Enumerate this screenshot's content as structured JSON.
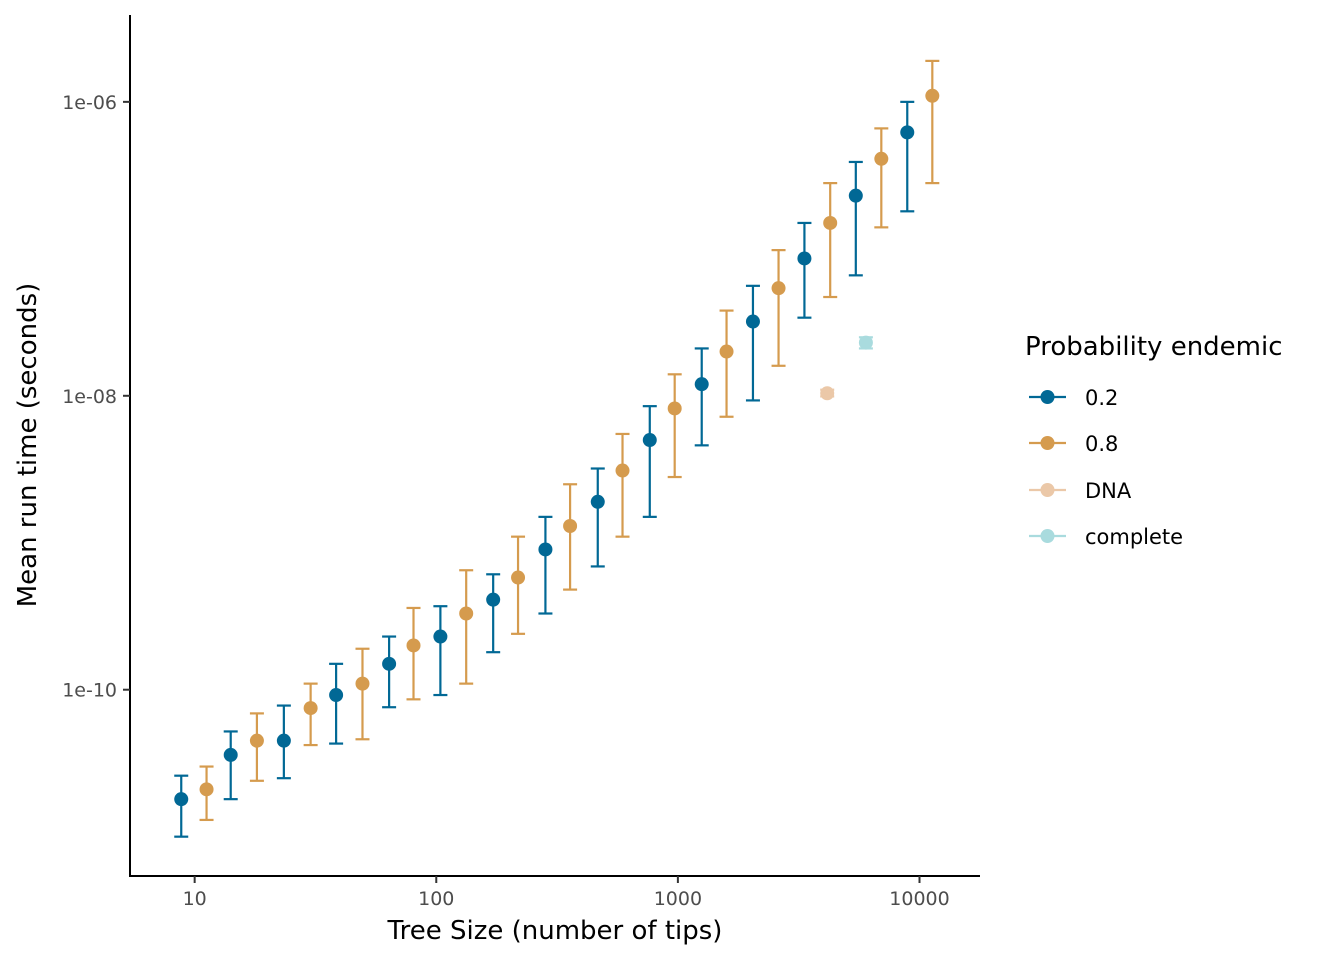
{
  "chart_data": {
    "type": "scatter",
    "xlabel": "Tree Size (number of tips)",
    "ylabel": "Mean run time (seconds)",
    "x_scale": "log10",
    "y_scale": "log10",
    "xlim": [
      5.4,
      17800
    ],
    "ylim": [
      5.4e-12,
      3.9e-06
    ],
    "x_ticks": [
      {
        "value": 10,
        "label": "10"
      },
      {
        "value": 100,
        "label": "100"
      },
      {
        "value": 1000,
        "label": "1000"
      },
      {
        "value": 10000,
        "label": "10000"
      }
    ],
    "y_ticks": [
      {
        "value": 1e-10,
        "label": "1e-10"
      },
      {
        "value": 1e-08,
        "label": "1e-8"
      },
      {
        "value": 1e-06,
        "label": "1e-06"
      }
    ],
    "y_tick_labels_display": [
      "1e-10",
      "1e-08",
      "1e-06"
    ],
    "grid": false,
    "legend": {
      "title": "Probability endemic",
      "position": "right",
      "entries": [
        "0.2",
        "0.8",
        "DNA",
        "complete"
      ]
    },
    "series": [
      {
        "name": "0.2",
        "color": "#016895",
        "points": [
          {
            "x": 8.8,
            "y": 1.8e-11,
            "lo": 1e-11,
            "hi": 2.6e-11
          },
          {
            "x": 14.1,
            "y": 3.6e-11,
            "lo": 1.8e-11,
            "hi": 5.2e-11
          },
          {
            "x": 23.4,
            "y": 4.5e-11,
            "lo": 2.5e-11,
            "hi": 7.8e-11
          },
          {
            "x": 38.5,
            "y": 9.2e-11,
            "lo": 4.3e-11,
            "hi": 1.5e-10
          },
          {
            "x": 63.8,
            "y": 1.5e-10,
            "lo": 7.6e-11,
            "hi": 2.3e-10
          },
          {
            "x": 104,
            "y": 2.3e-10,
            "lo": 9.2e-11,
            "hi": 3.7e-10
          },
          {
            "x": 172,
            "y": 4.1e-10,
            "lo": 1.8e-10,
            "hi": 6.1e-10
          },
          {
            "x": 283,
            "y": 9e-10,
            "lo": 3.3e-10,
            "hi": 1.5e-09
          },
          {
            "x": 466,
            "y": 1.9e-09,
            "lo": 6.9e-10,
            "hi": 3.2e-09
          },
          {
            "x": 765,
            "y": 5e-09,
            "lo": 1.5e-09,
            "hi": 8.5e-09
          },
          {
            "x": 1255,
            "y": 1.2e-08,
            "lo": 4.6e-09,
            "hi": 2.1e-08
          },
          {
            "x": 2045,
            "y": 3.2e-08,
            "lo": 9.3e-09,
            "hi": 5.6e-08
          },
          {
            "x": 3340,
            "y": 8.6e-08,
            "lo": 3.4e-08,
            "hi": 1.5e-07
          },
          {
            "x": 5450,
            "y": 2.3e-07,
            "lo": 6.6e-08,
            "hi": 3.9e-07
          },
          {
            "x": 8900,
            "y": 6.2e-07,
            "lo": 1.8e-07,
            "hi": 1e-06
          }
        ]
      },
      {
        "name": "0.8",
        "color": "#D59B4E",
        "points": [
          {
            "x": 11.2,
            "y": 2.1e-11,
            "lo": 1.3e-11,
            "hi": 3e-11
          },
          {
            "x": 18.1,
            "y": 4.5e-11,
            "lo": 2.4e-11,
            "hi": 6.9e-11
          },
          {
            "x": 30.2,
            "y": 7.5e-11,
            "lo": 4.2e-11,
            "hi": 1.1e-10
          },
          {
            "x": 49.5,
            "y": 1.1e-10,
            "lo": 4.6e-11,
            "hi": 1.9e-10
          },
          {
            "x": 80.5,
            "y": 2e-10,
            "lo": 8.6e-11,
            "hi": 3.6e-10
          },
          {
            "x": 133,
            "y": 3.3e-10,
            "lo": 1.1e-10,
            "hi": 6.5e-10
          },
          {
            "x": 218,
            "y": 5.8e-10,
            "lo": 2.4e-10,
            "hi": 1.1e-09
          },
          {
            "x": 358,
            "y": 1.3e-09,
            "lo": 4.8e-10,
            "hi": 2.5e-09
          },
          {
            "x": 590,
            "y": 3.1e-09,
            "lo": 1.1e-09,
            "hi": 5.5e-09
          },
          {
            "x": 970,
            "y": 8.2e-09,
            "lo": 2.8e-09,
            "hi": 1.4e-08
          },
          {
            "x": 1590,
            "y": 2e-08,
            "lo": 7.2e-09,
            "hi": 3.8e-08
          },
          {
            "x": 2610,
            "y": 5.4e-08,
            "lo": 1.6e-08,
            "hi": 9.8e-08
          },
          {
            "x": 4270,
            "y": 1.5e-07,
            "lo": 4.7e-08,
            "hi": 2.8e-07
          },
          {
            "x": 6950,
            "y": 4.1e-07,
            "lo": 1.4e-07,
            "hi": 6.6e-07
          },
          {
            "x": 11300,
            "y": 1.1e-06,
            "lo": 2.8e-07,
            "hi": 1.9e-06
          }
        ]
      },
      {
        "name": "DNA",
        "color": "#EBC8A8",
        "points": [
          {
            "x": 4150,
            "y": 1.04e-08,
            "lo": 9.9e-09,
            "hi": 1.1e-08
          }
        ]
      },
      {
        "name": "complete",
        "color": "#A9DBDE",
        "points": [
          {
            "x": 6000,
            "y": 2.3e-08,
            "lo": 2.1e-08,
            "hi": 2.5e-08
          }
        ]
      }
    ]
  }
}
